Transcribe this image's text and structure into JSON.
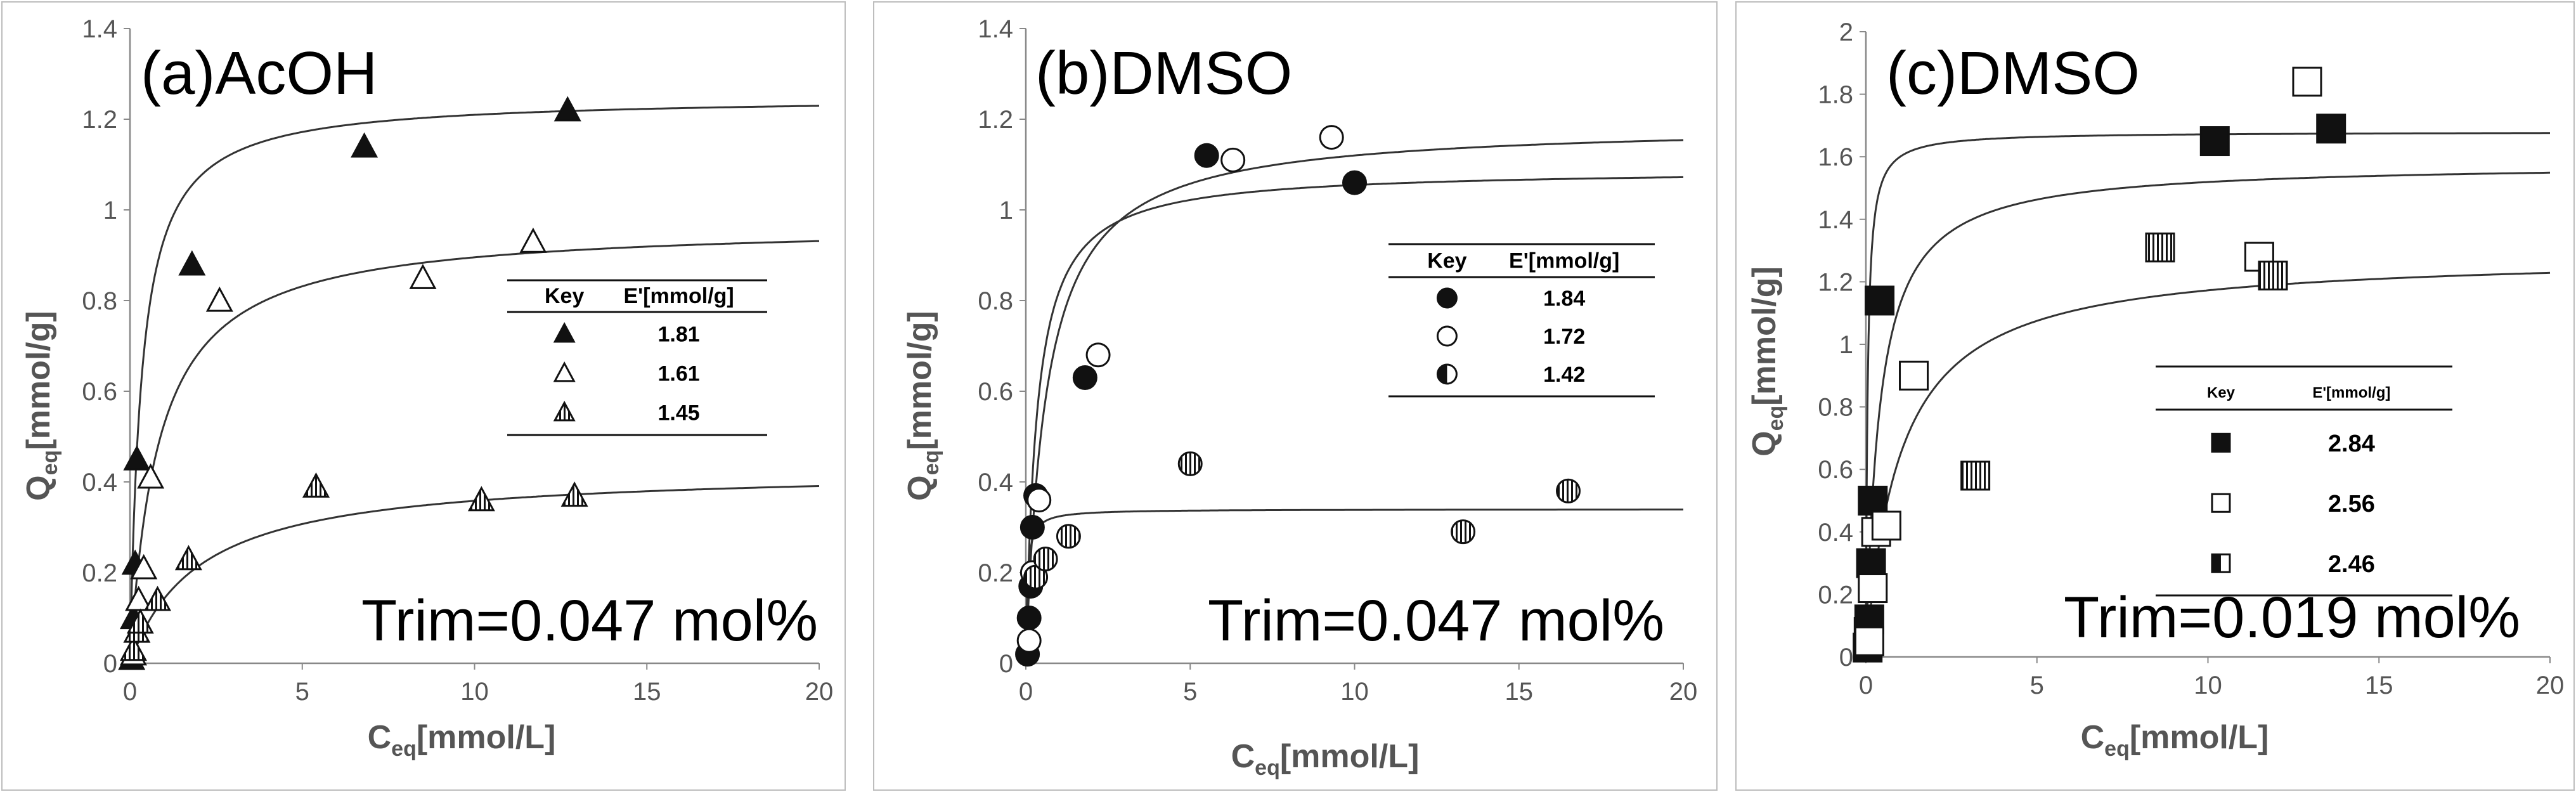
{
  "chart_data": [
    {
      "type": "scatter",
      "panel": "a",
      "title": "(a)AcOH",
      "annotation": "Trim=0.047 mol%",
      "ylabel": "eq",
      "ylabel_main": "Q",
      "ylabel_unit": "[mmol/g]",
      "xlabel_main": "C",
      "xlabel_sub": "eq",
      "xlabel_unit": "[mmol/L]",
      "xlim": [
        0,
        20
      ],
      "ylim": [
        0,
        1.4
      ],
      "xticks": [
        0,
        5,
        10,
        15,
        20
      ],
      "yticks": [
        0,
        0.2,
        0.4,
        0.6,
        0.8,
        1,
        1.2,
        1.4
      ],
      "legend": {
        "header_key": "Key",
        "header_value": "E'[mmol/g]",
        "entries": [
          {
            "marker": "triangle-filled",
            "value": "1.81"
          },
          {
            "marker": "triangle-open",
            "value": "1.61"
          },
          {
            "marker": "triangle-striped",
            "value": "1.45"
          }
        ]
      },
      "series": [
        {
          "name": "1.81",
          "marker": "triangle-filled",
          "x": [
            0.05,
            0.1,
            0.15,
            0.2,
            1.8,
            6.8,
            12.7
          ],
          "y": [
            0.01,
            0.1,
            0.22,
            0.45,
            0.88,
            1.14,
            1.22
          ],
          "fit_qmax": 1.25,
          "fit_k": 3.0
        },
        {
          "name": "1.61",
          "marker": "triangle-open",
          "x": [
            0.1,
            0.25,
            0.4,
            0.6,
            2.6,
            8.5,
            11.7
          ],
          "y": [
            0.02,
            0.14,
            0.21,
            0.41,
            0.8,
            0.85,
            0.93
          ],
          "fit_qmax": 0.97,
          "fit_k": 1.2
        },
        {
          "name": "1.45",
          "marker": "triangle-striped",
          "x": [
            0.1,
            0.2,
            0.3,
            0.8,
            1.7,
            5.4,
            10.2,
            12.9
          ],
          "y": [
            0.03,
            0.07,
            0.09,
            0.14,
            0.23,
            0.39,
            0.36,
            0.37
          ],
          "fit_qmax": 0.43,
          "fit_k": 0.5
        }
      ]
    },
    {
      "type": "scatter",
      "panel": "b",
      "title": "(b)DMSO",
      "annotation": "Trim=0.047 mol%",
      "ylabel_main": "Q",
      "ylabel_sub": "eq",
      "ylabel_unit": "[mmol/g]",
      "xlabel_main": "C",
      "xlabel_sub": "eq",
      "xlabel_unit": "[mmol/L]",
      "xlim": [
        0,
        20
      ],
      "ylim": [
        0,
        1.4
      ],
      "xticks": [
        0,
        5,
        10,
        15,
        20
      ],
      "yticks": [
        0,
        0.2,
        0.4,
        0.6,
        0.8,
        1,
        1.2,
        1.4
      ],
      "legend": {
        "header_key": "Key",
        "header_value": "E'[mmol/g]",
        "entries": [
          {
            "marker": "circle-filled",
            "value": "1.84"
          },
          {
            "marker": "circle-open",
            "value": "1.72"
          },
          {
            "marker": "circle-half",
            "value": "1.42"
          }
        ]
      },
      "series": [
        {
          "name": "1.84",
          "marker": "circle-filled",
          "x": [
            0.05,
            0.1,
            0.15,
            0.2,
            0.3,
            1.8,
            5.5,
            10
          ],
          "y": [
            0.02,
            0.1,
            0.17,
            0.3,
            0.37,
            0.63,
            1.12,
            1.06
          ],
          "fit_qmax": 1.09,
          "fit_k": 3.0
        },
        {
          "name": "1.72",
          "marker": "circle-open",
          "x": [
            0.1,
            0.2,
            0.4,
            2.2,
            6.3,
            9.3
          ],
          "y": [
            0.05,
            0.2,
            0.36,
            0.68,
            1.11,
            1.16
          ],
          "fit_qmax": 1.19,
          "fit_k": 1.6
        },
        {
          "name": "1.42",
          "marker": "circle-striped",
          "x": [
            0.3,
            0.6,
            1.3,
            5,
            13.3,
            16.5
          ],
          "y": [
            0.19,
            0.23,
            0.28,
            0.44,
            0.29,
            0.38
          ],
          "fit_qmax": 0.34,
          "fit_k": 20
        }
      ]
    },
    {
      "type": "scatter",
      "panel": "c",
      "title": "(c)DMSO",
      "annotation": "Trim=0.019 mol%",
      "ylabel_main": "Q",
      "ylabel_sub": "eq",
      "ylabel_unit": "[mmol/g]",
      "xlabel_main": "C",
      "xlabel_sub": "eq",
      "xlabel_unit": "[mmol/L]",
      "xlim": [
        0,
        20
      ],
      "ylim": [
        0,
        2
      ],
      "xticks": [
        0,
        5,
        10,
        15,
        20
      ],
      "yticks": [
        0,
        0.2,
        0.4,
        0.6,
        0.8,
        1,
        1.2,
        1.4,
        1.6,
        1.8,
        2
      ],
      "legend": {
        "header_key": "Key",
        "header_value": "E'[mmol/g]",
        "entries": [
          {
            "marker": "square-filled",
            "value": "2.84"
          },
          {
            "marker": "square-open",
            "value": "2.56"
          },
          {
            "marker": "square-half",
            "value": "2.46"
          }
        ]
      },
      "series": [
        {
          "name": "2.84",
          "marker": "square-filled",
          "x": [
            0.05,
            0.08,
            0.1,
            0.15,
            0.2,
            0.4,
            10.2,
            13.6
          ],
          "y": [
            0.03,
            0.08,
            0.12,
            0.3,
            0.5,
            1.14,
            1.65,
            1.69
          ],
          "fit_qmax": 1.68,
          "fit_k": 20
        },
        {
          "name": "2.56",
          "marker": "square-open",
          "x": [
            0.1,
            0.2,
            0.3,
            0.6,
            1.4,
            11.5,
            12.9
          ],
          "y": [
            0.05,
            0.22,
            0.4,
            0.42,
            0.9,
            1.28,
            1.84
          ],
          "fit_qmax": 1.58,
          "fit_k": 2.5
        },
        {
          "name": "2.46",
          "marker": "square-striped",
          "x": [
            3.2,
            8.6,
            11.9
          ],
          "y": [
            0.58,
            1.31,
            1.22
          ],
          "fit_qmax": 1.29,
          "fit_k": 1.0
        }
      ]
    }
  ]
}
